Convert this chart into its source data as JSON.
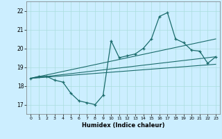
{
  "xlabel": "Humidex (Indice chaleur)",
  "bg_color": "#cceeff",
  "line_color": "#1a6b6b",
  "grid_color": "#aadddd",
  "xlim": [
    -0.5,
    23.5
  ],
  "ylim": [
    16.5,
    22.5
  ],
  "yticks": [
    17,
    18,
    19,
    20,
    21,
    22
  ],
  "xticks": [
    0,
    1,
    2,
    3,
    4,
    5,
    6,
    7,
    8,
    9,
    10,
    11,
    12,
    13,
    14,
    15,
    16,
    17,
    18,
    19,
    20,
    21,
    22,
    23
  ],
  "main_x": [
    0,
    1,
    2,
    3,
    4,
    5,
    6,
    7,
    8,
    9,
    10,
    11,
    12,
    13,
    14,
    15,
    16,
    17,
    18,
    19,
    20,
    21,
    22,
    23
  ],
  "main_y": [
    18.4,
    18.5,
    18.5,
    18.3,
    18.2,
    17.6,
    17.2,
    17.1,
    17.0,
    17.5,
    20.4,
    19.5,
    19.6,
    19.7,
    20.0,
    20.5,
    21.7,
    21.9,
    20.5,
    20.3,
    19.9,
    19.85,
    19.2,
    19.55
  ],
  "line1_x": [
    0,
    23
  ],
  "line1_y": [
    18.4,
    20.5
  ],
  "line2_x": [
    0,
    23
  ],
  "line2_y": [
    18.4,
    19.55
  ],
  "line3_x": [
    0,
    23
  ],
  "line3_y": [
    18.4,
    19.15
  ]
}
